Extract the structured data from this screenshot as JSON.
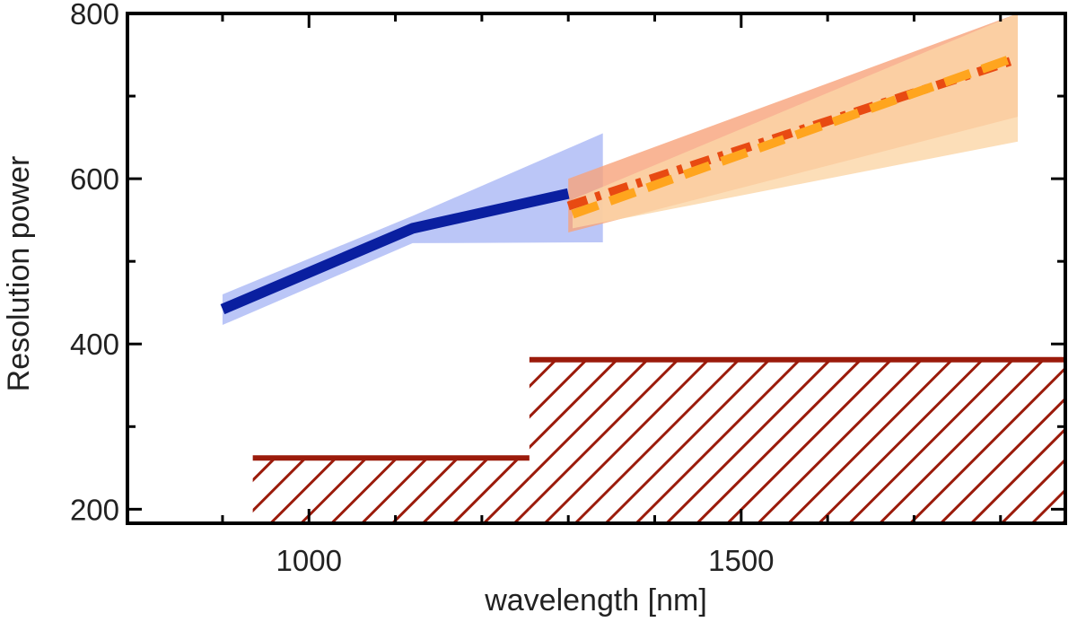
{
  "chart_data": {
    "type": "line",
    "title": "",
    "xlabel": "wavelength [nm]",
    "ylabel": "Resolution power",
    "xlim": [
      790,
      1875
    ],
    "ylim": [
      183,
      800
    ],
    "xticks": [
      1000,
      1500
    ],
    "xtick_labels": [
      "1000",
      "1500"
    ],
    "x_minor_ticks": [
      900,
      1100,
      1200,
      1300,
      1400,
      1600,
      1700,
      1800
    ],
    "yticks": [
      200,
      400,
      600,
      800
    ],
    "ytick_labels": [
      "200",
      "400",
      "600",
      "800"
    ],
    "y_minor_ticks": [
      300,
      500,
      700
    ],
    "series": [
      {
        "name": "blue-line",
        "style": "solid",
        "color": "#0a1fa0",
        "band_color": "#aab8f5",
        "x": [
          900,
          1120,
          1300
        ],
        "y": [
          442,
          540,
          582
        ],
        "band_x": [
          900,
          1120,
          1340,
          1340,
          1120,
          900
        ],
        "band_y": [
          460,
          555,
          655,
          523,
          522,
          423
        ]
      },
      {
        "name": "red-dashdot-line",
        "style": "dashdot",
        "color": "#e84a12",
        "band_color": "#f7a27a",
        "x": [
          1300,
          1820
        ],
        "y": [
          567,
          745
        ],
        "band_x": [
          1300,
          1820,
          1820,
          1300
        ],
        "band_y": [
          600,
          800,
          675,
          535
        ]
      },
      {
        "name": "orange-dashed-line",
        "style": "dashed",
        "color": "#ffa51e",
        "band_color": "#fbd6a6",
        "x": [
          1305,
          1820
        ],
        "y": [
          557,
          748
        ],
        "band_x": [
          1305,
          1820,
          1820,
          1305
        ],
        "band_y": [
          575,
          800,
          645,
          540
        ]
      }
    ],
    "hatched_regions": [
      {
        "name": "hatch-low",
        "x": [
          935,
          1255
        ],
        "y": [
          183,
          262
        ],
        "color": "#9b1b0b"
      },
      {
        "name": "hatch-high",
        "x": [
          1255,
          1875
        ],
        "y": [
          183,
          381
        ],
        "color": "#9b1b0b"
      }
    ]
  }
}
